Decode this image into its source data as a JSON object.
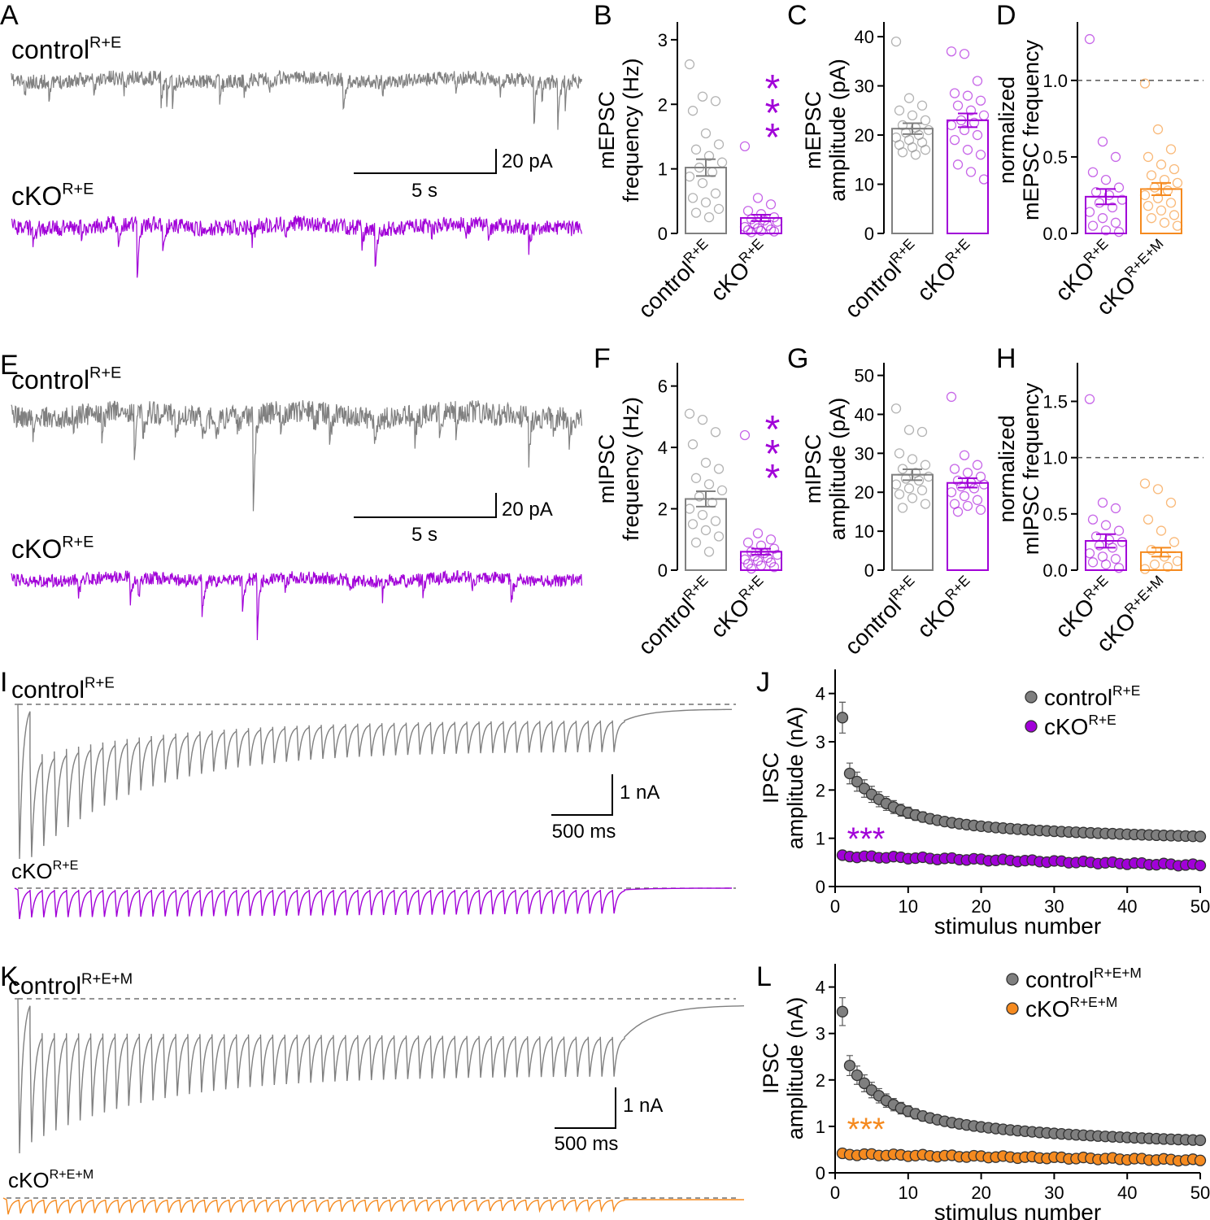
{
  "colors": {
    "control": "#808080",
    "cko": "#a100d8",
    "ckoM": "#f58a1f",
    "controlDot": "#7f7f7f",
    "axis": "#000000",
    "dash": "#555555"
  },
  "panel_letters": [
    "A",
    "B",
    "C",
    "D",
    "E",
    "F",
    "G",
    "H",
    "I",
    "J",
    "K",
    "L"
  ],
  "group_labels": {
    "control": "control",
    "cko": "cKO",
    "sup_re": "R+E",
    "sup_rem": "R+E+M"
  },
  "scale_bars": {
    "pA": "20 pA",
    "s": "5 s",
    "nA": "1 nA",
    "ms": "500 ms"
  },
  "significance": "***",
  "chart_data": [
    {
      "id": "B",
      "type": "bar",
      "title": "",
      "ylabel_lines": [
        "mEPSC",
        "frequency (Hz)"
      ],
      "ylim": [
        0,
        3.2
      ],
      "yticks": [
        0,
        1,
        2,
        3
      ],
      "ytick_labels": [
        "0",
        "1",
        "2",
        "3"
      ],
      "categories": [
        "control R+E",
        "cKO R+E"
      ],
      "values": [
        1.02,
        0.24
      ],
      "sem": [
        0.13,
        0.05
      ],
      "points": [
        [
          2.62,
          2.12,
          2.05,
          1.9,
          1.55,
          1.38,
          1.3,
          1.2,
          1.1,
          1.02,
          0.95,
          0.88,
          0.78,
          0.62,
          0.55,
          0.48,
          0.38,
          0.32,
          0.25
        ],
        [
          1.35,
          0.55,
          0.45,
          0.35,
          0.3,
          0.25,
          0.22,
          0.2,
          0.18,
          0.15,
          0.12,
          0.1,
          0.08,
          0.06,
          0.05,
          0.04,
          0.03,
          0.02
        ]
      ],
      "significance": "***"
    },
    {
      "id": "C",
      "type": "bar",
      "title": "",
      "ylabel_lines": [
        "mEPSC",
        "amplitude (pA)"
      ],
      "ylim": [
        0,
        42
      ],
      "yticks": [
        0,
        10,
        20,
        30,
        40
      ],
      "ytick_labels": [
        "0",
        "10",
        "20",
        "30",
        "40"
      ],
      "categories": [
        "control R+E",
        "cKO R+E"
      ],
      "values": [
        21.3,
        23.0
      ],
      "sem": [
        1.1,
        1.4
      ],
      "points": [
        [
          39.0,
          27.5,
          26.0,
          25.0,
          24.0,
          23.0,
          22.0,
          21.5,
          21.0,
          20.5,
          20.0,
          19.5,
          19.0,
          18.5,
          18.0,
          17.5,
          17.0,
          16.5,
          16.0
        ],
        [
          37.0,
          36.5,
          31.0,
          28.5,
          28.0,
          27.0,
          26.0,
          25.0,
          24.0,
          23.0,
          22.5,
          22.0,
          21.0,
          20.0,
          19.0,
          17.0,
          16.0,
          14.0,
          12.5,
          11.0
        ]
      ]
    },
    {
      "id": "D",
      "type": "bar",
      "title": "",
      "ylabel_lines": [
        "normalized",
        "mEPSC frequency"
      ],
      "ylim": [
        0,
        1.35
      ],
      "yticks": [
        0,
        0.5,
        1.0
      ],
      "ytick_labels": [
        "0.0",
        "0.5",
        "1.0"
      ],
      "reference_line": 1.0,
      "categories": [
        "cKO R+E",
        "cKO R+E+M"
      ],
      "values": [
        0.24,
        0.29
      ],
      "sem": [
        0.05,
        0.04
      ],
      "points": [
        [
          1.27,
          0.6,
          0.5,
          0.4,
          0.35,
          0.3,
          0.27,
          0.25,
          0.22,
          0.2,
          0.17,
          0.14,
          0.1,
          0.07,
          0.05,
          0.02,
          0.01
        ],
        [
          0.98,
          0.68,
          0.55,
          0.5,
          0.45,
          0.42,
          0.38,
          0.35,
          0.33,
          0.3,
          0.28,
          0.25,
          0.23,
          0.2,
          0.18,
          0.15,
          0.12,
          0.1,
          0.07,
          0.05
        ]
      ]
    },
    {
      "id": "F",
      "type": "bar",
      "title": "",
      "ylabel_lines": [
        "mIPSC",
        "frequency (Hz)"
      ],
      "ylim": [
        0,
        6.6
      ],
      "yticks": [
        0,
        2,
        4,
        6
      ],
      "ytick_labels": [
        "0",
        "2",
        "4",
        "6"
      ],
      "categories": [
        "control R+E",
        "cKO R+E"
      ],
      "values": [
        2.32,
        0.6
      ],
      "sem": [
        0.25,
        0.1
      ],
      "points": [
        [
          5.1,
          4.9,
          4.5,
          4.1,
          3.5,
          3.3,
          3.0,
          2.8,
          2.6,
          2.4,
          2.2,
          2.0,
          1.8,
          1.6,
          1.5,
          1.3,
          1.1,
          0.9,
          0.6
        ],
        [
          4.4,
          1.2,
          1.0,
          0.9,
          0.8,
          0.7,
          0.6,
          0.55,
          0.5,
          0.45,
          0.4,
          0.35,
          0.3,
          0.25,
          0.2,
          0.15,
          0.1,
          0.05
        ]
      ],
      "significance": "***"
    },
    {
      "id": "G",
      "type": "bar",
      "title": "",
      "ylabel_lines": [
        "mIPSC",
        "amplitude (pA)"
      ],
      "ylim": [
        0,
        52
      ],
      "yticks": [
        0,
        10,
        20,
        30,
        40,
        50
      ],
      "ytick_labels": [
        "0",
        "10",
        "20",
        "30",
        "40",
        "50"
      ],
      "categories": [
        "control R+E",
        "cKO R+E"
      ],
      "values": [
        24.5,
        22.4
      ],
      "sem": [
        1.4,
        1.2
      ],
      "points": [
        [
          41.5,
          36.0,
          35.5,
          30.0,
          28.5,
          27.0,
          26.0,
          25.0,
          24.0,
          23.5,
          23.0,
          22.0,
          21.0,
          20.5,
          19.5,
          18.5,
          17.0,
          16.0
        ],
        [
          44.5,
          29.5,
          27.0,
          26.0,
          25.0,
          24.0,
          23.0,
          22.5,
          22.0,
          21.5,
          21.0,
          20.0,
          19.0,
          18.0,
          17.0,
          16.5,
          15.5,
          15.0
        ]
      ]
    },
    {
      "id": "H",
      "type": "bar",
      "title": "",
      "ylabel_lines": [
        "normalized",
        "mIPSC frequency"
      ],
      "ylim": [
        0,
        1.8
      ],
      "yticks": [
        0,
        0.5,
        1.0,
        1.5
      ],
      "ytick_labels": [
        "0.0",
        "0.5",
        "1.0",
        "1.5"
      ],
      "reference_line": 1.0,
      "categories": [
        "cKO R+E",
        "cKO R+E+M"
      ],
      "values": [
        0.26,
        0.16
      ],
      "sem": [
        0.06,
        0.04
      ],
      "points": [
        [
          1.52,
          0.6,
          0.55,
          0.45,
          0.4,
          0.35,
          0.3,
          0.27,
          0.25,
          0.22,
          0.2,
          0.15,
          0.12,
          0.1,
          0.07,
          0.05,
          0.02
        ],
        [
          0.77,
          0.72,
          0.6,
          0.45,
          0.35,
          0.25,
          0.18,
          0.12,
          0.08,
          0.05,
          0.03,
          0.01
        ]
      ]
    },
    {
      "id": "J",
      "type": "scatter",
      "title": "",
      "ylabel_lines": [
        "IPSC",
        "amplitude (nA)"
      ],
      "xlabel": "stimulus number",
      "xlim": [
        0,
        50
      ],
      "ylim": [
        0,
        4.5
      ],
      "xticks": [
        0,
        10,
        20,
        30,
        40,
        50
      ],
      "yticks": [
        0,
        1,
        2,
        3,
        4
      ],
      "series": [
        {
          "name": "control R+E",
          "decay": {
            "a": 0.88,
            "b": 2.6,
            "tau": 5.5,
            "c": 0.55,
            "t2": 40
          },
          "first": 3.5,
          "err_first": 0.32
        },
        {
          "name": "cKO R+E",
          "start": 0.63,
          "end": 0.44
        }
      ],
      "significance": "***"
    },
    {
      "id": "L",
      "type": "scatter",
      "title": "",
      "ylabel_lines": [
        "IPSC",
        "amplitude (nA)"
      ],
      "xlabel": "stimulus number",
      "xlim": [
        0,
        50
      ],
      "ylim": [
        0,
        4.5
      ],
      "xticks": [
        0,
        10,
        20,
        30,
        40,
        50
      ],
      "yticks": [
        0,
        1,
        2,
        3,
        4
      ],
      "series": [
        {
          "name": "control R+E+M",
          "decay": {
            "a": 0.55,
            "b": 2.9,
            "tau": 5.0,
            "c": 0.8,
            "t2": 30
          },
          "first": 3.47,
          "err_first": 0.3
        },
        {
          "name": "cKO R+E+M",
          "start": 0.4,
          "end": 0.27
        }
      ],
      "significance": "***"
    }
  ]
}
